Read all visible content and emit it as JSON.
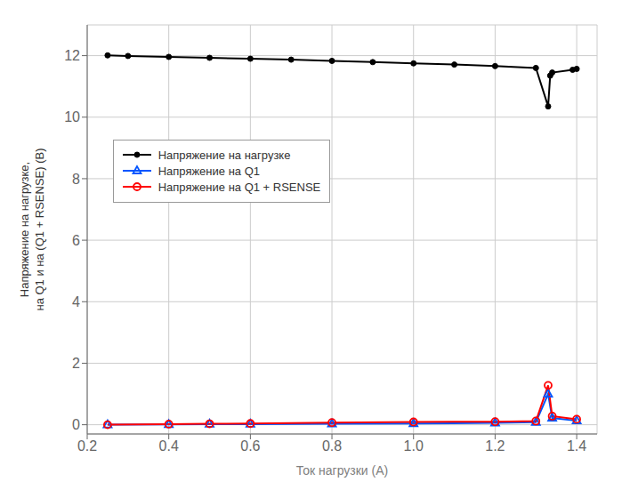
{
  "chart_data": {
    "type": "line",
    "xlabel": "Ток нагрузки (А)",
    "ylabel": "Напряжение на нагрузке,\nна Q1 и на (Q1 + RSENSE) (В)",
    "xlim": [
      0.2,
      1.45
    ],
    "ylim": [
      -0.3,
      13.0
    ],
    "xticks": [
      0.2,
      0.4,
      0.6,
      0.8,
      {
        "value": 1.0,
        "label": "1.0"
      },
      1.2,
      1.4
    ],
    "yticks": [
      0,
      2,
      4,
      6,
      8,
      10,
      12
    ],
    "grid": true,
    "legend": "upper left",
    "series": [
      {
        "name": "Напряжение на нагрузке",
        "color": "#000000",
        "marker": "circle",
        "x": [
          0.25,
          0.3,
          0.4,
          0.5,
          0.6,
          0.7,
          0.8,
          0.9,
          1.0,
          1.1,
          1.2,
          1.3,
          1.33,
          1.335,
          1.34,
          1.39,
          1.4
        ],
        "values": [
          12.01,
          11.99,
          11.96,
          11.93,
          11.9,
          11.87,
          11.83,
          11.79,
          11.75,
          11.71,
          11.66,
          11.6,
          10.35,
          11.35,
          11.45,
          11.54,
          11.57
        ]
      },
      {
        "name": "Напряжение на Q1",
        "color": "#0055FF",
        "marker": "triangle-open",
        "x": [
          0.25,
          0.4,
          0.5,
          0.6,
          0.8,
          1.0,
          1.2,
          1.3,
          1.33,
          1.34,
          1.4
        ],
        "values": [
          0.0,
          0.01,
          0.02,
          0.02,
          0.03,
          0.04,
          0.06,
          0.08,
          1.0,
          0.22,
          0.13
        ]
      },
      {
        "name": "Напряжение на Q1 + RSENSE",
        "color": "#FF0000",
        "marker": "circle-open",
        "x": [
          0.25,
          0.4,
          0.5,
          0.6,
          0.8,
          1.0,
          1.2,
          1.3,
          1.33,
          1.34,
          1.4
        ],
        "values": [
          0.0,
          0.02,
          0.03,
          0.04,
          0.07,
          0.09,
          0.1,
          0.12,
          1.28,
          0.28,
          0.18
        ]
      }
    ]
  }
}
